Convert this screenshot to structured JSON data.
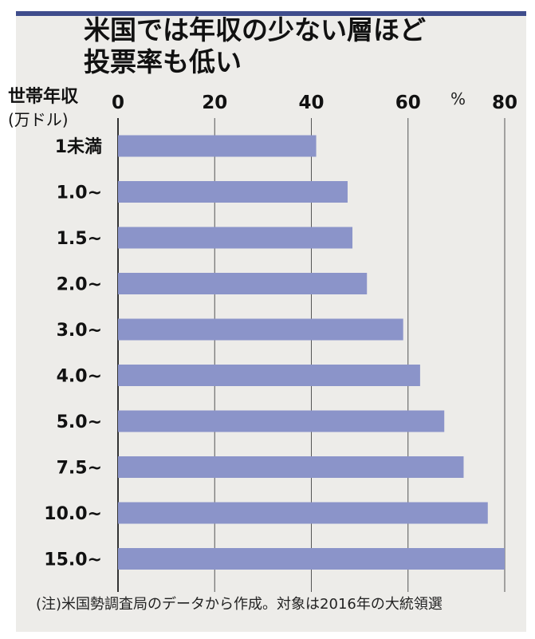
{
  "chart_data": {
    "type": "bar",
    "orientation": "horizontal",
    "title": "米国では年収の少ない層ほど投票率も低い",
    "title_lines": [
      "米国では年収の少ない層ほど",
      "投票率も低い"
    ],
    "ylabel": "世帯年収",
    "ylabel_unit": "(万ドル)",
    "xunit": "%",
    "categories": [
      "1未満",
      "1.0~",
      "1.5~",
      "2.0~",
      "3.0~",
      "4.0~",
      "5.0~",
      "7.5~",
      "10.0~",
      "15.0~"
    ],
    "values": [
      41,
      47.5,
      48.5,
      51.5,
      59,
      62.5,
      67.5,
      71.5,
      76.5,
      80
    ],
    "xlim": [
      0,
      80
    ],
    "xticks": [
      0,
      20,
      40,
      60,
      80
    ],
    "grid": true,
    "bar_color": "#8b94c9",
    "note": "(注)米国勢調査局のデータから作成。対象は2016年の大統領選"
  },
  "colors": {
    "header_bar": "#3f4d8c",
    "background": "#edece9",
    "grid": "#555555"
  }
}
